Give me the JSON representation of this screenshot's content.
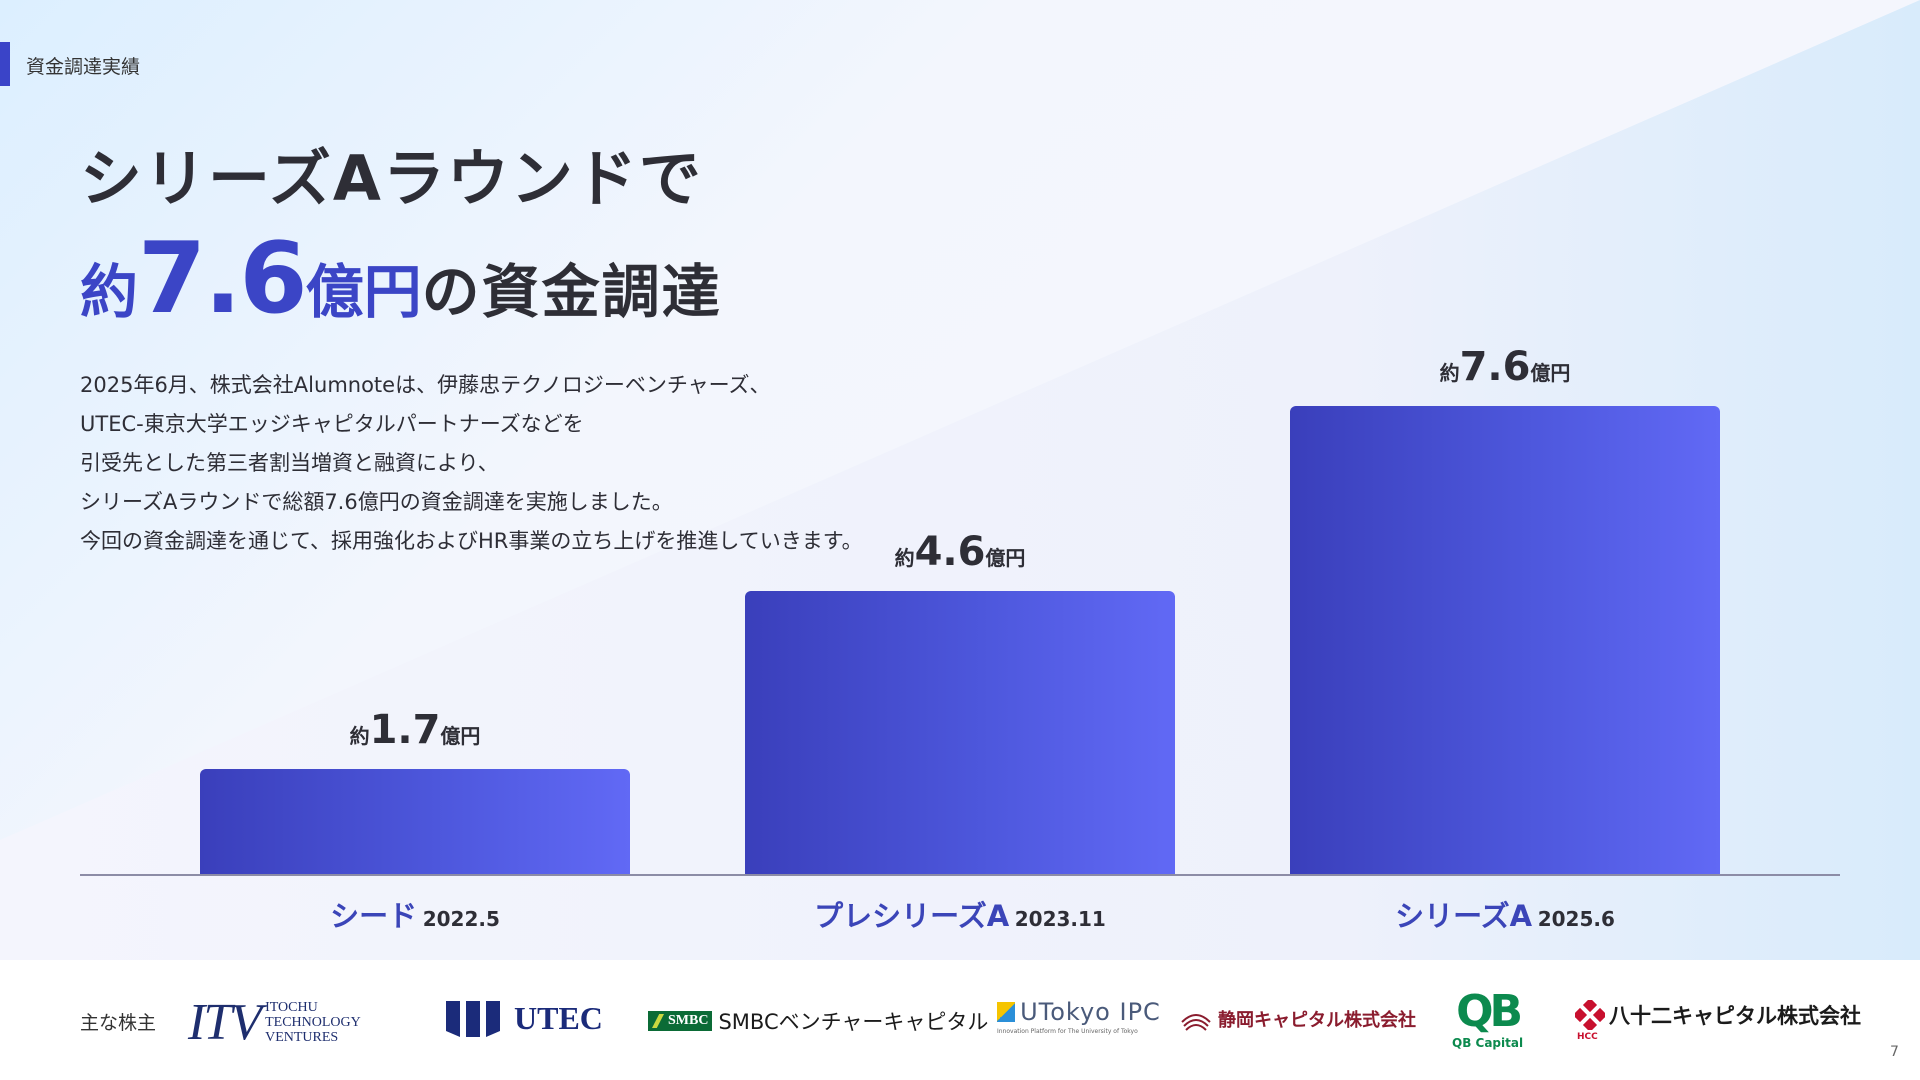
{
  "section_label": "資金調達実績",
  "headline": {
    "line1": "シリーズAラウンドで",
    "prefix": "約",
    "amount": "7.6",
    "unit": "億円",
    "suffix": "の資金調達"
  },
  "description": [
    "2025年6月、株式会社Alumnoteは、伊藤忠テクノロジーベンチャーズ、",
    "UTEC-東京大学エッジキャピタルパートナーズなどを",
    "引受先とした第三者割当増資と融資により、",
    "シリーズAラウンドで総額7.6億円の資金調達を実施しました。",
    "今回の資金調達を通じて、採用強化およびHR事業の立ち上げを推進していきます。"
  ],
  "chart_data": {
    "type": "bar",
    "categories": [
      "シード",
      "プレシリーズA",
      "シリーズA"
    ],
    "dates": [
      "2022.5",
      "2023.11",
      "2025.6"
    ],
    "values": [
      1.7,
      4.6,
      7.6
    ],
    "value_labels": [
      {
        "prefix": "約",
        "value": "1.7",
        "unit": "億円"
      },
      {
        "prefix": "約",
        "value": "4.6",
        "unit": "億円"
      },
      {
        "prefix": "約",
        "value": "7.6",
        "unit": "億円"
      }
    ],
    "ylim": [
      0,
      7.6
    ],
    "colors": {
      "bar_start": "#3a3fbb",
      "bar_end": "#6169f5",
      "category_text": "#3b45b8"
    }
  },
  "shareholders": {
    "label": "主な株主",
    "logos": {
      "itv": {
        "mark": "ITV",
        "lines": [
          "ITOCHU",
          "TECHNOLOGY",
          "VENTURES"
        ]
      },
      "utec": {
        "text": "UTEC"
      },
      "smbc": {
        "box": "SMBC",
        "text": "SMBCベンチャーキャピタル"
      },
      "utokyo": {
        "text": "UTokyo IPC",
        "sub": "Innovation Platform for The University of Tokyo"
      },
      "shizuoka": {
        "text": "静岡キャピタル株式会社"
      },
      "qb": {
        "mark": "QB",
        "sub": "QB Capital"
      },
      "hcc": {
        "text": "八十二キャピタル株式会社",
        "tiny": "HCC"
      }
    }
  },
  "page_number": "7",
  "colors": {
    "accent": "#3b45c6",
    "text": "#2e2e36"
  }
}
